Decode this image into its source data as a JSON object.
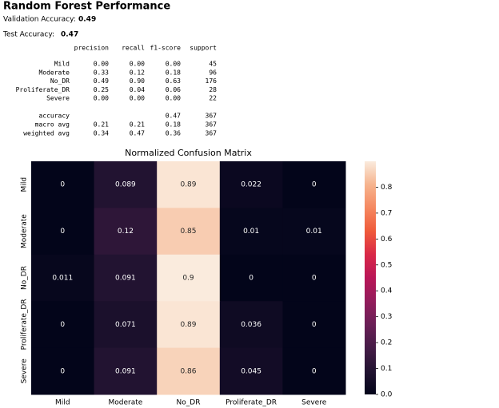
{
  "header": {
    "title": "Random Forest Performance"
  },
  "metrics": [
    {
      "label": "Validation Accuracy:",
      "value": "0.49"
    },
    {
      "label": "Test Accuracy:",
      "value": "0.47"
    }
  ],
  "report": {
    "columns": [
      "precision",
      "recall",
      "f1-score",
      "support"
    ],
    "rows": [
      [
        "Mild",
        "0.00",
        "0.00",
        "0.00",
        "45"
      ],
      [
        "Moderate",
        "0.33",
        "0.12",
        "0.18",
        "96"
      ],
      [
        "No_DR",
        "0.49",
        "0.90",
        "0.63",
        "176"
      ],
      [
        "Proliferate_DR",
        "0.25",
        "0.04",
        "0.06",
        "28"
      ],
      [
        "Severe",
        "0.00",
        "0.00",
        "0.00",
        "22"
      ]
    ],
    "summary": [
      [
        "accuracy",
        "0.47",
        "367"
      ],
      [
        "macro avg",
        "0.21",
        "0.21",
        "0.18",
        "367"
      ],
      [
        "weighted avg",
        "0.34",
        "0.47",
        "0.36",
        "367"
      ]
    ]
  },
  "chart_data": {
    "type": "heatmap",
    "title": "Normalized Confusion Matrix",
    "x": [
      "Mild",
      "Moderate",
      "No_DR",
      "Proliferate_DR",
      "Severe"
    ],
    "y": [
      "Mild",
      "Moderate",
      "No_DR",
      "Proliferate_DR",
      "Severe"
    ],
    "values": [
      [
        0,
        0.089,
        0.89,
        0.022,
        0
      ],
      [
        0,
        0.12,
        0.85,
        0.01,
        0.01
      ],
      [
        0.011,
        0.091,
        0.9,
        0,
        0
      ],
      [
        0,
        0.071,
        0.89,
        0.036,
        0
      ],
      [
        0,
        0.091,
        0.86,
        0.045,
        0
      ]
    ],
    "zlim": [
      0,
      0.9
    ],
    "zticks": [
      {
        "value": 0,
        "label": "0.0"
      },
      {
        "value": 0.1,
        "label": "0.1"
      },
      {
        "value": 0.2,
        "label": "0.2"
      },
      {
        "value": 0.3,
        "label": "0.3"
      },
      {
        "value": 0.4,
        "label": "0.4"
      },
      {
        "value": 0.5,
        "label": "0.5"
      },
      {
        "value": 0.6,
        "label": "0.6"
      },
      {
        "value": 0.7,
        "label": "0.7"
      },
      {
        "value": 0.8,
        "label": "0.8"
      }
    ],
    "colormap": [
      "#03051a",
      "#221331",
      "#451c47",
      "#6a1f56",
      "#921c5b",
      "#b91657",
      "#d92847",
      "#ef5a3a",
      "#f58860",
      "#f6b48e",
      "#faebdd"
    ]
  }
}
